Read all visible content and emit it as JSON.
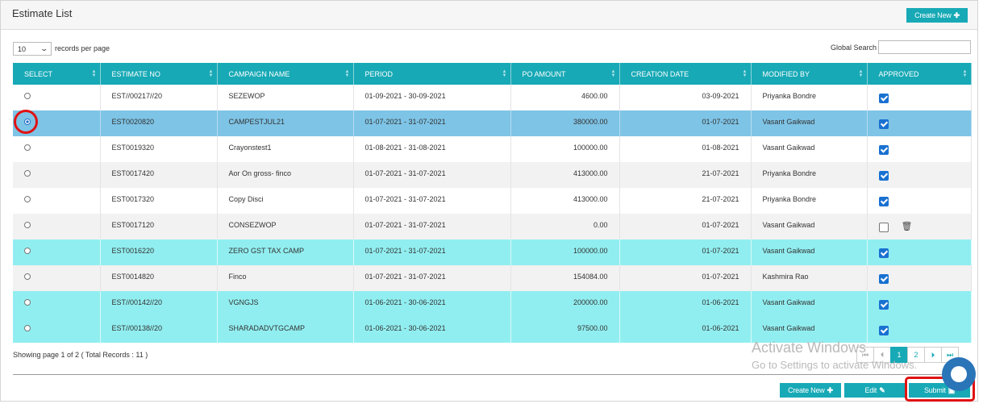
{
  "header": {
    "title": "Estimate List",
    "create_new_label": "Create New",
    "create_new_icon": "plus-icon"
  },
  "controls": {
    "page_length_value": "10",
    "page_length_suffix": "records per page",
    "search_label": "Global Search",
    "search_value": ""
  },
  "table": {
    "columns": [
      "SELECT",
      "ESTIMATE NO",
      "CAMPAIGN NAME",
      "PERIOD",
      "PO AMOUNT",
      "CREATION DATE",
      "MODIFIED BY",
      "APPROVED"
    ],
    "rows": [
      {
        "estimate_no": "EST//00217//20",
        "campaign": "SEZEWOP",
        "period": "01-09-2021 - 30-09-2021",
        "po_amount": "4600.00",
        "creation_date": "03-09-2021",
        "modified_by": "Priyanka Bondre",
        "approved": true,
        "selected": false,
        "style": "odd"
      },
      {
        "estimate_no": "EST0020820",
        "campaign": "CAMPESTJUL21",
        "period": "01-07-2021 - 31-07-2021",
        "po_amount": "380000.00",
        "creation_date": "01-07-2021",
        "modified_by": "Vasant Gaikwad",
        "approved": true,
        "selected": true,
        "style": "selected"
      },
      {
        "estimate_no": "EST0019320",
        "campaign": "Crayonstest1",
        "period": "01-08-2021 - 31-08-2021",
        "po_amount": "100000.00",
        "creation_date": "01-08-2021",
        "modified_by": "Vasant Gaikwad",
        "approved": true,
        "selected": false,
        "style": "odd"
      },
      {
        "estimate_no": "EST0017420",
        "campaign": "Aor On gross- finco",
        "period": "01-07-2021 - 31-07-2021",
        "po_amount": "413000.00",
        "creation_date": "21-07-2021",
        "modified_by": "Priyanka Bondre",
        "approved": true,
        "selected": false,
        "style": "even"
      },
      {
        "estimate_no": "EST0017320",
        "campaign": "Copy Disci",
        "period": "01-07-2021 - 31-07-2021",
        "po_amount": "413000.00",
        "creation_date": "21-07-2021",
        "modified_by": "Priyanka Bondre",
        "approved": true,
        "selected": false,
        "style": "odd"
      },
      {
        "estimate_no": "EST0017120",
        "campaign": "CONSEZWOP",
        "period": "01-07-2021 - 31-07-2021",
        "po_amount": "0.00",
        "creation_date": "01-07-2021",
        "modified_by": "Vasant Gaikwad",
        "approved": false,
        "selected": false,
        "style": "even",
        "deletable": true
      },
      {
        "estimate_no": "EST0016220",
        "campaign": "ZERO GST TAX CAMP",
        "period": "01-07-2021 - 31-07-2021",
        "po_amount": "100000.00",
        "creation_date": "01-07-2021",
        "modified_by": "Vasant Gaikwad",
        "approved": true,
        "selected": false,
        "style": "cyan"
      },
      {
        "estimate_no": "EST0014820",
        "campaign": "Finco",
        "period": "01-07-2021 - 31-07-2021",
        "po_amount": "154084.00",
        "creation_date": "01-07-2021",
        "modified_by": "Kashmira Rao",
        "approved": true,
        "selected": false,
        "style": "even"
      },
      {
        "estimate_no": "EST//00142//20",
        "campaign": "VGNGJS",
        "period": "01-06-2021 - 30-06-2021",
        "po_amount": "200000.00",
        "creation_date": "01-06-2021",
        "modified_by": "Vasant Gaikwad",
        "approved": true,
        "selected": false,
        "style": "cyan"
      },
      {
        "estimate_no": "EST//00138//20",
        "campaign": "SHARADADVTGCAMP",
        "period": "01-06-2021 - 30-06-2021",
        "po_amount": "97500.00",
        "creation_date": "01-06-2021",
        "modified_by": "Vasant Gaikwad",
        "approved": true,
        "selected": false,
        "style": "cyan"
      }
    ]
  },
  "footer": {
    "info": "Showing page 1 of 2 ( Total Records : 11 )",
    "pagination": {
      "first": "⏮",
      "prev": "⏴",
      "pages": [
        "1",
        "2"
      ],
      "current": "1",
      "next": "⏵",
      "last": "⏭"
    },
    "buttons": {
      "create_new": "Create New",
      "edit": "Edit",
      "submit": "Submit"
    }
  },
  "watermark": {
    "line1": "Activate Windows",
    "line2": "Go to Settings to activate Windows."
  },
  "colors": {
    "accent": "#17a9b6",
    "selected_row": "#7ec4e6",
    "highlight_row": "#91eef0",
    "annotation": "#e01212"
  }
}
